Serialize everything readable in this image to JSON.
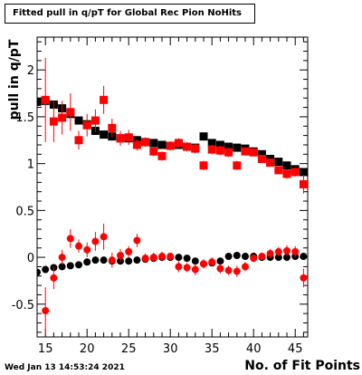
{
  "title": "Fitted pull in q/pT for Global Rec Pion NoHits",
  "timestamp": "Wed Jan 13 14:53:24 2021",
  "colors": {
    "series_black": "#000000",
    "series_red": "#ff0000",
    "background": "#ffffff"
  },
  "chart_data": {
    "type": "scatter",
    "title": "Fitted pull in q/pT for Global Rec Pion NoHits",
    "xlabel": "No. of Fit Points",
    "ylabel": "pull in q/pT",
    "xlim": [
      14,
      46.5
    ],
    "ylim": [
      -0.85,
      2.35
    ],
    "x_ticks": [
      15,
      20,
      25,
      30,
      35,
      40,
      45
    ],
    "y_ticks": [
      -0.5,
      0,
      0.5,
      1,
      1.5,
      2
    ],
    "x_tick_labels": [
      "15",
      "20",
      "25",
      "30",
      "35",
      "40",
      "45"
    ],
    "y_tick_labels": [
      "-0.5",
      "0",
      "0.5",
      "1",
      "1.5",
      "2"
    ],
    "grid": false,
    "series": [
      {
        "marker": "square",
        "color": "#000000",
        "x": [
          14,
          15,
          16,
          17,
          18,
          19,
          20,
          21,
          22,
          23,
          24,
          25,
          26,
          27,
          28,
          29,
          30,
          31,
          32,
          33,
          34,
          35,
          36,
          37,
          38,
          39,
          40,
          41,
          42,
          43,
          44,
          45,
          46
        ],
        "y": [
          1.66,
          1.67,
          1.63,
          1.59,
          1.53,
          1.46,
          1.42,
          1.35,
          1.31,
          1.29,
          1.27,
          1.27,
          1.25,
          1.23,
          1.22,
          1.2,
          1.19,
          1.2,
          1.18,
          1.17,
          1.29,
          1.22,
          1.2,
          1.18,
          1.17,
          1.16,
          1.13,
          1.1,
          1.05,
          1.02,
          0.98,
          0.94,
          0.91
        ],
        "yerr": [
          0.02,
          0.02,
          0.02,
          0.02,
          0.02,
          0.02,
          0.02,
          0.02,
          0.02,
          0.02,
          0.02,
          0.02,
          0.02,
          0.02,
          0.02,
          0.02,
          0.02,
          0.02,
          0.02,
          0.02,
          0.02,
          0.02,
          0.02,
          0.02,
          0.02,
          0.02,
          0.02,
          0.02,
          0.02,
          0.02,
          0.02,
          0.02,
          0.02
        ]
      },
      {
        "marker": "square",
        "color": "#ff0000",
        "x": [
          15,
          16,
          17,
          18,
          19,
          20,
          21,
          22,
          23,
          24,
          25,
          26,
          27,
          28,
          29,
          30,
          31,
          32,
          33,
          34,
          35,
          36,
          37,
          38,
          39,
          40,
          41,
          42,
          43,
          44,
          45,
          46
        ],
        "y": [
          1.68,
          1.45,
          1.49,
          1.55,
          1.25,
          1.41,
          1.46,
          1.68,
          1.38,
          1.27,
          1.28,
          1.2,
          1.23,
          1.13,
          1.08,
          1.19,
          1.22,
          1.18,
          1.16,
          0.98,
          1.15,
          1.14,
          1.12,
          0.98,
          1.13,
          1.12,
          1.05,
          1.01,
          0.93,
          0.89,
          0.91,
          0.78
        ],
        "yerr": [
          0.45,
          0.22,
          0.18,
          0.2,
          0.1,
          0.12,
          0.12,
          0.15,
          0.1,
          0.08,
          0.08,
          0.06,
          0.05,
          0.05,
          0.05,
          0.05,
          0.05,
          0.05,
          0.05,
          0.05,
          0.05,
          0.05,
          0.05,
          0.05,
          0.04,
          0.04,
          0.04,
          0.04,
          0.04,
          0.05,
          0.05,
          0.1
        ]
      },
      {
        "marker": "circle",
        "color": "#000000",
        "x": [
          14,
          15,
          16,
          17,
          18,
          19,
          20,
          21,
          22,
          23,
          24,
          25,
          26,
          27,
          28,
          29,
          30,
          31,
          32,
          33,
          34,
          35,
          36,
          37,
          38,
          39,
          40,
          41,
          42,
          43,
          44,
          45,
          46
        ],
        "y": [
          -0.16,
          -0.13,
          -0.11,
          -0.1,
          -0.09,
          -0.08,
          -0.05,
          -0.03,
          -0.03,
          -0.04,
          -0.04,
          -0.04,
          -0.03,
          -0.02,
          -0.01,
          0.0,
          0.0,
          0.0,
          -0.01,
          -0.04,
          -0.07,
          -0.06,
          -0.04,
          0.01,
          0.02,
          0.01,
          0.01,
          0.0,
          0.0,
          0.0,
          0.0,
          0.01,
          0.01
        ],
        "yerr": [
          0.02,
          0.02,
          0.02,
          0.02,
          0.02,
          0.02,
          0.02,
          0.02,
          0.02,
          0.02,
          0.02,
          0.02,
          0.02,
          0.02,
          0.02,
          0.02,
          0.02,
          0.02,
          0.02,
          0.02,
          0.02,
          0.02,
          0.02,
          0.02,
          0.02,
          0.02,
          0.02,
          0.02,
          0.02,
          0.02,
          0.02,
          0.02,
          0.02
        ]
      },
      {
        "marker": "circle",
        "color": "#ff0000",
        "x": [
          15,
          16,
          17,
          18,
          19,
          20,
          21,
          22,
          23,
          24,
          25,
          26,
          27,
          28,
          29,
          30,
          31,
          32,
          33,
          34,
          35,
          36,
          37,
          38,
          39,
          40,
          41,
          42,
          43,
          44,
          45,
          46
        ],
        "y": [
          -0.57,
          -0.22,
          0.0,
          0.2,
          0.12,
          0.08,
          0.17,
          0.22,
          -0.03,
          0.02,
          0.06,
          0.18,
          -0.01,
          0.0,
          0.01,
          0.01,
          -0.1,
          -0.11,
          -0.13,
          -0.07,
          -0.05,
          -0.12,
          -0.14,
          -0.15,
          -0.1,
          -0.01,
          0.01,
          0.04,
          0.06,
          0.07,
          0.06,
          -0.22
        ],
        "yerr": [
          0.25,
          0.12,
          0.08,
          0.1,
          0.07,
          0.08,
          0.1,
          0.14,
          0.08,
          0.07,
          0.06,
          0.07,
          0.05,
          0.05,
          0.05,
          0.04,
          0.06,
          0.05,
          0.06,
          0.05,
          0.05,
          0.05,
          0.05,
          0.06,
          0.05,
          0.04,
          0.04,
          0.05,
          0.05,
          0.06,
          0.06,
          0.1
        ]
      }
    ]
  }
}
